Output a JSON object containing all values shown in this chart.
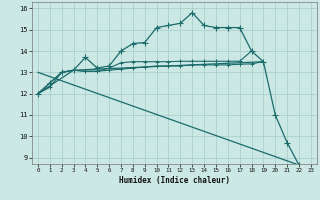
{
  "xlabel": "Humidex (Indice chaleur)",
  "x_ticks": [
    0,
    1,
    2,
    3,
    4,
    5,
    6,
    7,
    8,
    9,
    10,
    11,
    12,
    13,
    14,
    15,
    16,
    17,
    18,
    19,
    20,
    21,
    22,
    23
  ],
  "xlim": [
    -0.5,
    23.5
  ],
  "ylim": [
    8.7,
    16.3
  ],
  "y_ticks": [
    9,
    10,
    11,
    12,
    13,
    14,
    15,
    16
  ],
  "background_color": "#cce8e4",
  "grid_color": "#aacfcb",
  "line_color": "#1a6b6b",
  "series1_x": [
    0,
    1,
    2,
    3,
    4,
    5,
    6,
    7,
    8,
    9,
    10,
    11,
    12,
    13,
    14,
    15,
    16,
    17,
    18,
    19,
    20,
    21,
    22
  ],
  "series1_y": [
    12.0,
    12.5,
    13.0,
    13.1,
    13.7,
    13.2,
    13.3,
    14.0,
    14.35,
    14.4,
    15.1,
    15.2,
    15.3,
    15.8,
    15.2,
    15.1,
    15.1,
    15.1,
    14.0,
    13.5,
    11.0,
    9.7,
    8.65
  ],
  "series2_x": [
    0,
    1,
    2,
    3,
    4,
    5,
    6,
    7,
    8,
    9,
    10,
    11,
    12,
    13,
    14,
    15,
    16,
    17,
    18,
    19
  ],
  "series2_y": [
    12.0,
    12.5,
    13.0,
    13.1,
    13.05,
    13.05,
    13.1,
    13.15,
    13.2,
    13.25,
    13.3,
    13.3,
    13.3,
    13.35,
    13.35,
    13.35,
    13.35,
    13.38,
    13.4,
    13.5
  ],
  "series3_x": [
    0,
    1,
    2,
    3,
    4,
    5,
    6,
    7,
    8,
    9,
    10,
    11,
    12,
    13,
    14,
    15,
    16,
    17,
    18
  ],
  "series3_y": [
    12.0,
    12.3,
    13.0,
    13.1,
    13.05,
    13.05,
    13.2,
    13.45,
    13.5,
    13.5,
    13.5,
    13.5,
    13.52,
    13.52,
    13.52,
    13.52,
    13.52,
    13.52,
    14.0
  ],
  "series4_x": [
    0,
    3,
    19
  ],
  "series4_y": [
    12.0,
    13.1,
    13.5
  ],
  "series5_x": [
    0,
    22
  ],
  "series5_y": [
    13.0,
    8.65
  ]
}
